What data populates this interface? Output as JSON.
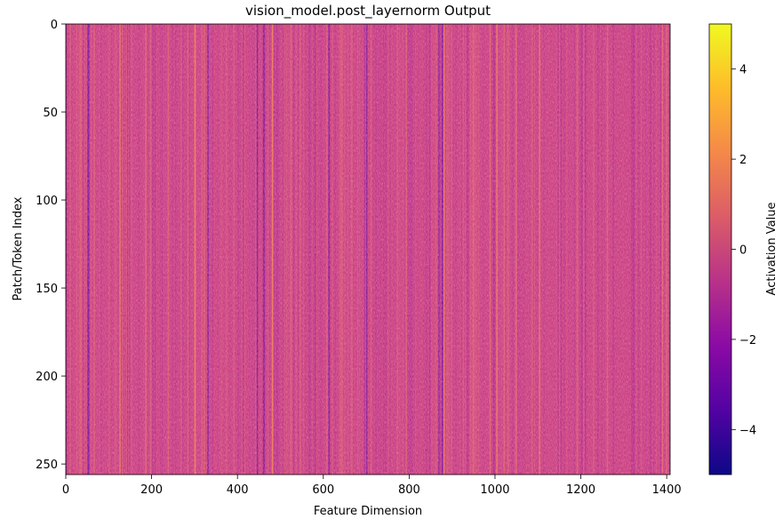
{
  "chart_data": {
    "type": "heatmap",
    "title": "vision_model.post_layernorm Output",
    "xlabel": "Feature Dimension",
    "ylabel": "Patch/Token Index",
    "colorbar_label": "Activation Value",
    "colormap": "plasma",
    "x_range": [
      0,
      1408
    ],
    "y_range": [
      0,
      256
    ],
    "y_inverted": true,
    "value_range": [
      -5,
      5
    ],
    "typical_value_range": [
      -1.5,
      1.5
    ],
    "x_ticks": [
      "0",
      "200",
      "400",
      "600",
      "800",
      "1000",
      "1200",
      "1400"
    ],
    "x_tick_values": [
      0,
      200,
      400,
      600,
      800,
      1000,
      1200,
      1400
    ],
    "y_ticks": [
      "0",
      "50",
      "100",
      "150",
      "200",
      "250"
    ],
    "y_tick_values": [
      0,
      50,
      100,
      150,
      200,
      250
    ],
    "colorbar_ticks": [
      "4",
      "2",
      "0",
      "−2",
      "−4"
    ],
    "colorbar_tick_values": [
      4,
      2,
      0,
      -2,
      -4
    ],
    "colorbar_stops": [
      "#0d0887",
      "#5302a3",
      "#8b0aa5",
      "#b83289",
      "#db5c68",
      "#f48849",
      "#febc2a",
      "#f0f921"
    ],
    "notable_columns": {
      "dark": [
        50,
        52,
        330,
        445,
        460,
        612,
        700,
        868,
        876
      ],
      "bright": [
        125,
        300,
        480,
        880,
        1003
      ]
    },
    "grid": false,
    "legend": "colorbar-right"
  }
}
